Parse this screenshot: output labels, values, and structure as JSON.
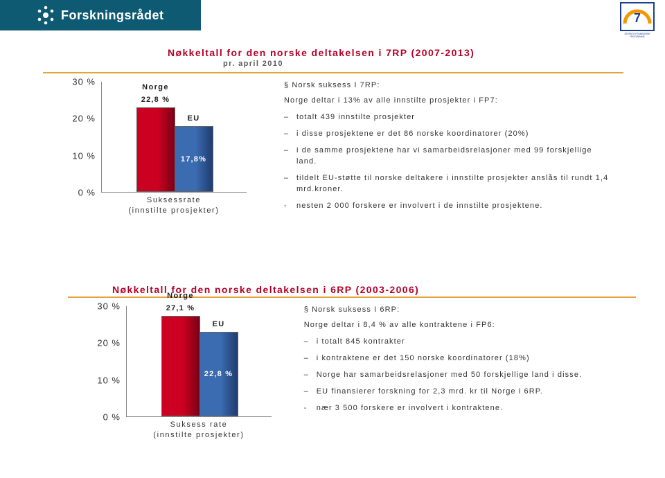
{
  "header": {
    "brand": "Forskningsrådet",
    "brand_color": "#0f5a73",
    "brand_text_color": "#ffffff"
  },
  "fp7_badge": {
    "frame_color": "#1b3e8f",
    "arc_color": "#f39800",
    "caption": "SEVENTH FRAMEWORK PROGRAMME"
  },
  "sections": [
    {
      "title": "Nøkkeltall for den norske deltakelsen i 7RP (2007-2013)",
      "subtitle": "pr. april 2010",
      "rule_color": "#e8a23b",
      "chart": {
        "type": "bar",
        "y_ticks": [
          "0 %",
          "10 %",
          "20 %",
          "30 %"
        ],
        "y_max_pct": 30,
        "x_label": "Suksessrate\n(innstilte prosjekter)",
        "bars": [
          {
            "series": "Norge",
            "value_pct": 22.8,
            "value_label": "22,8 %",
            "fill": "#cc0020",
            "grad_dark": "#7a0015"
          },
          {
            "series": "EU",
            "value_pct": 17.8,
            "value_label": "17,8%",
            "fill": "#3b6bb0",
            "grad_dark": "#1e3c6e"
          }
        ],
        "grid_color": "#d9d9d9",
        "axis_color": "#888888"
      },
      "text": {
        "para_title": "§   Norsk suksess I 7RP:",
        "lead": "Norge deltar i 13% av alle innstilte prosjekter i FP7:",
        "bullets": [
          "totalt 439 innstilte prosjekter",
          "i disse prosjektene er det 86 norske koordinatorer (20%)",
          "i de samme prosjektene har vi samarbeidsrelasjoner med 99 forskjellige land.",
          "tildelt EU-støtte til norske deltakere i innstilte prosjekter anslås til rundt 1,4 mrd.kroner."
        ],
        "tail": "nesten 2 000 forskere er involvert i de innstilte prosjektene."
      }
    },
    {
      "title": "Nøkkeltall for den norske deltakelsen i 6RP (2003-2006)",
      "subtitle": "",
      "rule_color": "#e8a23b",
      "chart": {
        "type": "bar",
        "y_ticks": [
          "0 %",
          "10 %",
          "20 %",
          "30 %"
        ],
        "y_max_pct": 30,
        "x_label": "Suksess rate\n(innstilte prosjekter)",
        "bars": [
          {
            "series": "Norge",
            "value_pct": 27.1,
            "value_label": "27,1 %",
            "fill": "#cc0020",
            "grad_dark": "#7a0015"
          },
          {
            "series": "EU",
            "value_pct": 22.8,
            "value_label": "22,8 %",
            "fill": "#3b6bb0",
            "grad_dark": "#1e3c6e"
          }
        ],
        "grid_color": "#d9d9d9",
        "axis_color": "#888888"
      },
      "text": {
        "para_title": "§   Norsk suksess I 6RP:",
        "lead": "Norge deltar i 8,4 % av alle kontraktene i FP6:",
        "bullets": [
          "i totalt 845 kontrakter",
          "i kontraktene er det 150 norske koordinatorer (18%)",
          "Norge har samarbeidsrelasjoner med 50 forskjellige land i disse.",
          "EU finansierer forskning for 2,3 mrd. kr til Norge i 6RP."
        ],
        "tail": "nær 3 500 forskere er involvert i kontraktene."
      }
    }
  ]
}
